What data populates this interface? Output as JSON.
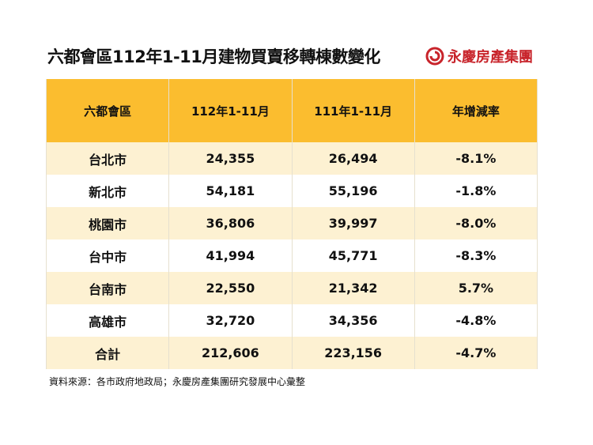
{
  "header": {
    "title": "六都會區112年1-11月建物買賣移轉棟數變化",
    "brand": "永慶房產集團"
  },
  "table": {
    "columns": [
      "六都會區",
      "112年1-11月",
      "111年1-11月",
      "年增減率"
    ],
    "rows": [
      [
        "台北市",
        "24,355",
        "26,494",
        "-8.1%"
      ],
      [
        "新北市",
        "54,181",
        "55,196",
        "-1.8%"
      ],
      [
        "桃園市",
        "36,806",
        "39,997",
        "-8.0%"
      ],
      [
        "台中市",
        "41,994",
        "45,771",
        "-8.3%"
      ],
      [
        "台南市",
        "22,550",
        "21,342",
        "5.7%"
      ],
      [
        "高雄市",
        "32,720",
        "34,356",
        "-4.8%"
      ],
      [
        "合計",
        "212,606",
        "223,156",
        "-4.7%"
      ]
    ]
  },
  "source": "資料來源：各市政府地政局；永慶房產集團研究發展中心彙整"
}
